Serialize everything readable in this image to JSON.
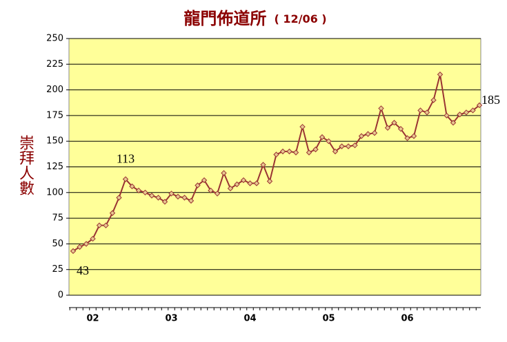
{
  "chart_data": {
    "type": "line",
    "title": "龍門佈道所",
    "subtitle": "( 12/06 )",
    "y_label": "崇拜人數",
    "categories": [
      null,
      null,
      null,
      "02",
      null,
      null,
      null,
      null,
      null,
      null,
      null,
      null,
      null,
      null,
      null,
      "03",
      null,
      null,
      null,
      null,
      null,
      null,
      null,
      null,
      null,
      null,
      null,
      "04",
      null,
      null,
      null,
      null,
      null,
      null,
      null,
      null,
      null,
      null,
      null,
      "05",
      null,
      null,
      null,
      null,
      null,
      null,
      null,
      null,
      null,
      null,
      null,
      "06",
      null,
      null,
      null,
      null,
      null,
      null,
      null,
      null,
      null,
      null,
      null
    ],
    "series": [
      {
        "name": "崇拜人數",
        "color": "#993333",
        "marker_fill": "#e8c890",
        "values": [
          43,
          47,
          50,
          55,
          68,
          68,
          80,
          95,
          113,
          106,
          102,
          100,
          97,
          95,
          91,
          99,
          96,
          95,
          92,
          107,
          112,
          102,
          99,
          119,
          104,
          108,
          112,
          109,
          109,
          127,
          111,
          137,
          140,
          140,
          139,
          164,
          139,
          142,
          154,
          150,
          140,
          145,
          145,
          146,
          155,
          157,
          158,
          182,
          163,
          168,
          162,
          153,
          155,
          180,
          178,
          190,
          215,
          175,
          168,
          176,
          178,
          180,
          185
        ]
      }
    ],
    "labeled_points": [
      0,
      8,
      62
    ],
    "ylim": [
      0,
      250
    ],
    "yticks": [
      0,
      25,
      50,
      75,
      100,
      125,
      150,
      175,
      200,
      225,
      250
    ],
    "grid": true,
    "plot_background": "#ffff99"
  }
}
